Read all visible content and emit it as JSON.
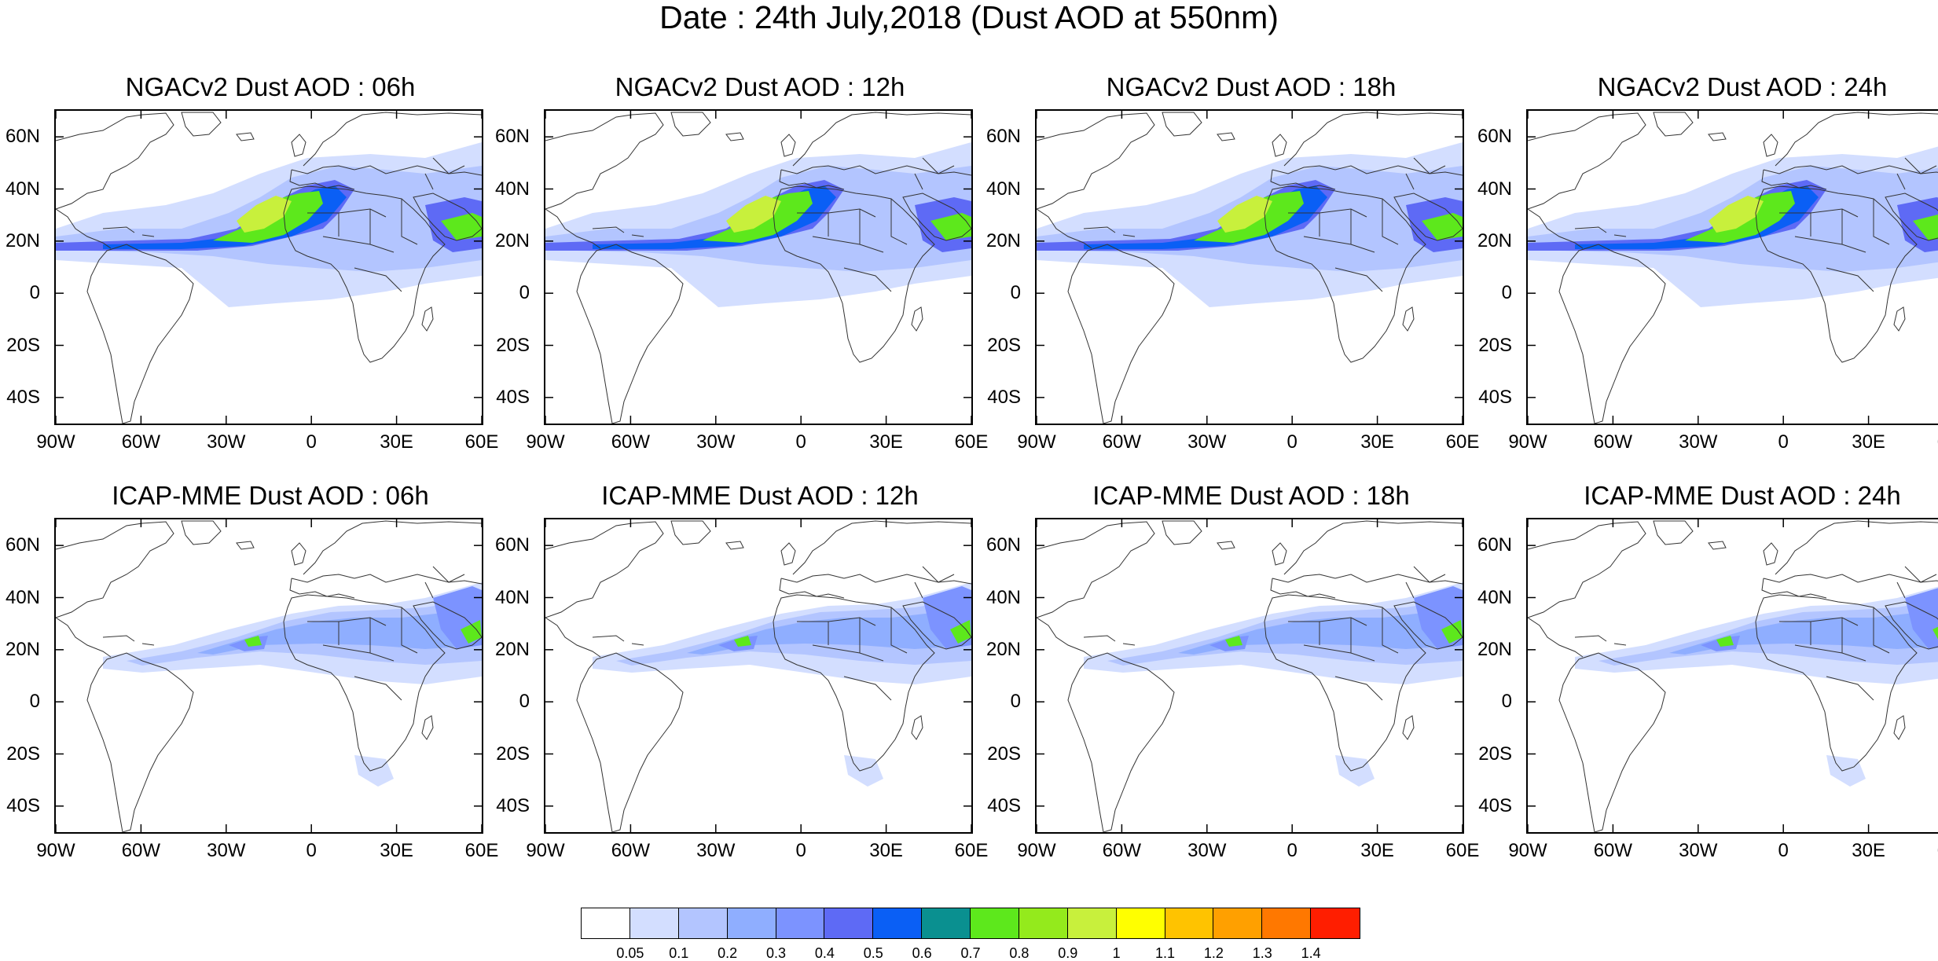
{
  "title": "Date : 24th July,2018 (Dust AOD at 550nm)",
  "panels": [
    {
      "title": "NGACv2 Dust AOD : 06h",
      "model": "NGACv2",
      "hour": "06h"
    },
    {
      "title": "NGACv2 Dust AOD : 12h",
      "model": "NGACv2",
      "hour": "12h"
    },
    {
      "title": "NGACv2 Dust AOD : 18h",
      "model": "NGACv2",
      "hour": "18h"
    },
    {
      "title": "NGACv2 Dust AOD : 24h",
      "model": "NGACv2",
      "hour": "24h"
    },
    {
      "title": "ICAP-MME Dust AOD : 06h",
      "model": "ICAP-MME",
      "hour": "06h"
    },
    {
      "title": "ICAP-MME Dust AOD : 12h",
      "model": "ICAP-MME",
      "hour": "12h"
    },
    {
      "title": "ICAP-MME Dust AOD : 18h",
      "model": "ICAP-MME",
      "hour": "18h"
    },
    {
      "title": "ICAP-MME Dust AOD : 24h",
      "model": "ICAP-MME",
      "hour": "24h"
    }
  ],
  "lat_ticks": [
    "60N",
    "40N",
    "20N",
    "0",
    "20S",
    "40S"
  ],
  "lon_ticks": [
    "90W",
    "60W",
    "30W",
    "0",
    "30E",
    "60E"
  ],
  "map_extent": {
    "lon_min": -90,
    "lon_max": 60,
    "lat_min": -50,
    "lat_max": 70
  },
  "colorbar": {
    "colors": [
      "#ffffff",
      "#d3deff",
      "#b3c5ff",
      "#8faeff",
      "#7c93ff",
      "#5e6af5",
      "#0a5ff5",
      "#0a9090",
      "#5de81c",
      "#94ea1c",
      "#c8f03c",
      "#ffff00",
      "#ffc300",
      "#ffa000",
      "#ff7800",
      "#ff1e00"
    ],
    "labels": [
      "0.05",
      "0.1",
      "0.2",
      "0.3",
      "0.4",
      "0.5",
      "0.6",
      "0.7",
      "0.8",
      "0.9",
      "1",
      "1.1",
      "1.2",
      "1.3",
      "1.4"
    ]
  }
}
